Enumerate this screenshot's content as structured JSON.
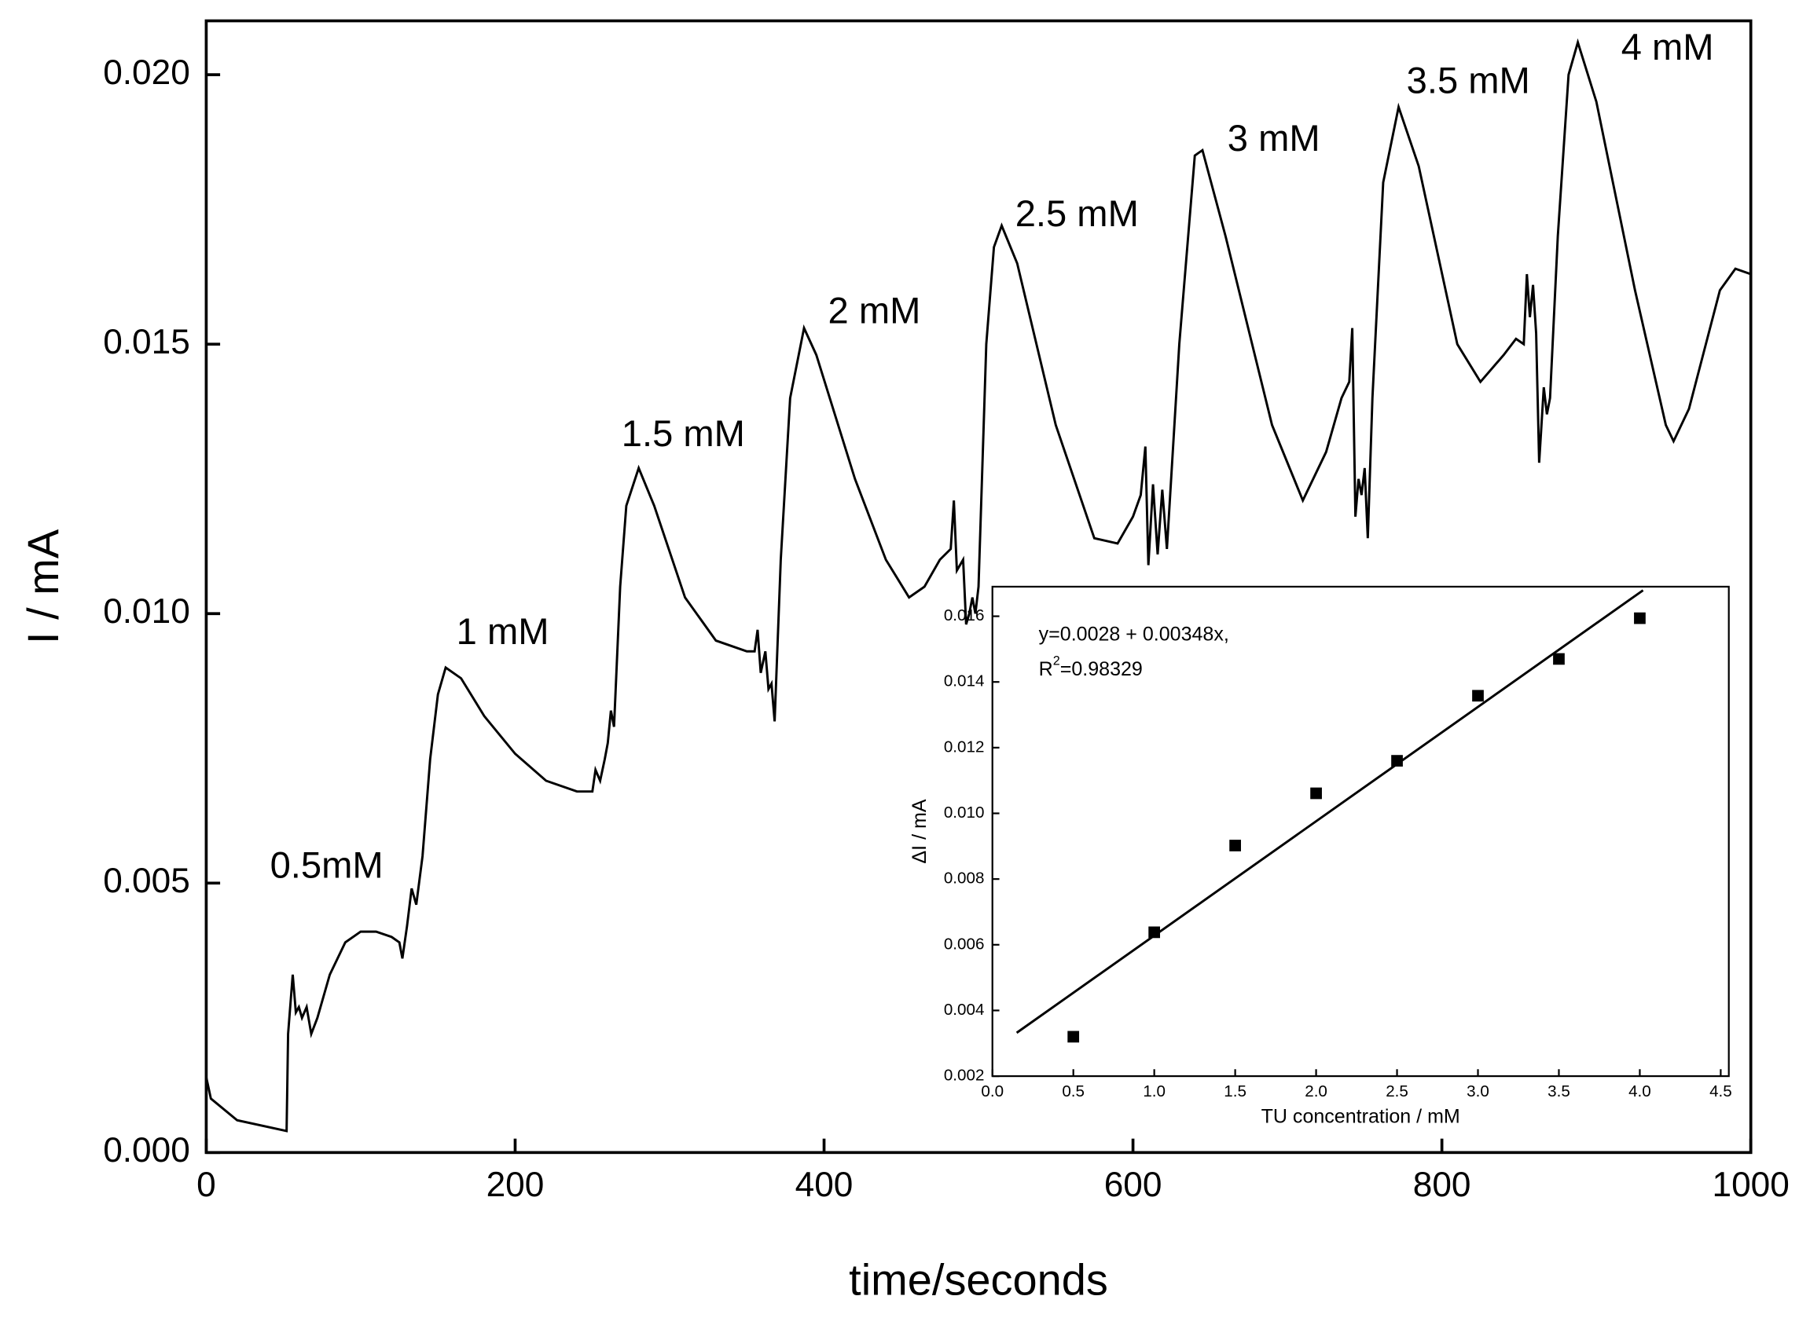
{
  "chart_data": [
    {
      "type": "line",
      "xlabel": "time/seconds",
      "ylabel": "I / mA",
      "annotations": [
        "0.5mM",
        "1 mM",
        "1.5 mM",
        "2 mM",
        "2.5 mM",
        "3 mM",
        "3.5 mM",
        "4 mM"
      ],
      "xlim": [
        0,
        1000
      ],
      "ylim": [
        0,
        0.021
      ],
      "xticks": [
        0,
        200,
        400,
        600,
        800,
        1000
      ],
      "yticks": [
        {
          "value": 0,
          "label": "0.000"
        },
        0.005,
        {
          "value": 0.01,
          "label": "0.010"
        },
        0.015,
        {
          "value": 0.02,
          "label": "0.020"
        }
      ],
      "color": "#000000",
      "x": [
        0,
        3,
        20,
        52,
        53,
        56,
        58,
        60,
        62,
        65,
        68,
        72,
        80,
        90,
        100,
        110,
        120,
        125,
        127,
        130,
        133,
        136,
        140,
        145,
        150,
        155,
        165,
        180,
        200,
        220,
        240,
        250,
        252,
        255,
        258,
        260,
        262,
        264,
        268,
        272,
        280,
        290,
        310,
        330,
        350,
        355,
        357,
        359,
        362,
        364,
        366,
        368,
        372,
        378,
        387,
        395,
        420,
        440,
        455,
        465,
        475,
        482,
        484,
        486,
        490,
        492,
        494,
        496,
        498,
        500,
        505,
        510,
        515,
        525,
        550,
        575,
        590,
        600,
        605,
        608,
        610,
        613,
        616,
        619,
        622,
        630,
        640,
        645,
        660,
        690,
        710,
        725,
        735,
        740,
        742,
        744,
        746,
        748,
        750,
        752,
        755,
        762,
        772,
        785,
        810,
        825,
        840,
        848,
        853,
        855,
        857,
        859,
        861,
        863,
        866,
        868,
        870,
        875,
        882,
        888,
        900,
        925,
        945,
        950,
        960,
        980,
        990,
        1000
      ],
      "values": [
        0.0014,
        0.001,
        0.0006,
        0.0004,
        0.0022,
        0.0033,
        0.0026,
        0.0027,
        0.0025,
        0.0027,
        0.0022,
        0.0025,
        0.0033,
        0.0039,
        0.0041,
        0.0041,
        0.004,
        0.0039,
        0.0036,
        0.0042,
        0.0049,
        0.0046,
        0.0055,
        0.0073,
        0.0085,
        0.009,
        0.0088,
        0.0081,
        0.0074,
        0.0069,
        0.0067,
        0.0067,
        0.0071,
        0.0069,
        0.0073,
        0.0076,
        0.0082,
        0.0079,
        0.0105,
        0.012,
        0.0127,
        0.012,
        0.0103,
        0.0095,
        0.0093,
        0.0093,
        0.0097,
        0.0089,
        0.0093,
        0.0086,
        0.0087,
        0.008,
        0.011,
        0.014,
        0.0153,
        0.0148,
        0.0125,
        0.011,
        0.0103,
        0.0105,
        0.011,
        0.0112,
        0.0121,
        0.0108,
        0.011,
        0.0098,
        0.01,
        0.0103,
        0.01,
        0.0105,
        0.015,
        0.0168,
        0.0172,
        0.0165,
        0.0135,
        0.0114,
        0.0113,
        0.0118,
        0.0122,
        0.0131,
        0.0109,
        0.0124,
        0.0111,
        0.0123,
        0.0112,
        0.015,
        0.0185,
        0.0186,
        0.017,
        0.0135,
        0.0121,
        0.013,
        0.014,
        0.0143,
        0.0153,
        0.0118,
        0.0125,
        0.0122,
        0.0127,
        0.0114,
        0.014,
        0.018,
        0.0194,
        0.0183,
        0.015,
        0.0143,
        0.0148,
        0.0151,
        0.015,
        0.0163,
        0.0155,
        0.0161,
        0.0152,
        0.0128,
        0.0142,
        0.0137,
        0.014,
        0.017,
        0.02,
        0.0206,
        0.0195,
        0.016,
        0.0135,
        0.0132,
        0.0138,
        0.016,
        0.0164,
        0.0163
      ]
    },
    {
      "type": "scatter",
      "xlabel": "TU concentration / mM",
      "ylabel": "ΔI / mA",
      "equation": "y=0.0028 + 0.00348x,",
      "r_squared": {
        "base": "R",
        "sup": "2",
        "text": "=0.98329"
      },
      "xlim": [
        0,
        4.55
      ],
      "ylim": [
        0.002,
        0.0169
      ],
      "xticks": [
        {
          "value": 0,
          "label": "0.0"
        },
        0.5,
        {
          "value": 1,
          "label": "1.0"
        },
        1.5,
        {
          "value": 2,
          "label": "2.0"
        },
        2.5,
        {
          "value": 3,
          "label": "3.0"
        },
        3.5,
        {
          "value": 4,
          "label": "4.0"
        },
        4.5
      ],
      "yticks": [
        0.002,
        0.004,
        0.006,
        0.008,
        {
          "value": 0.01,
          "label": "0.010"
        },
        0.012,
        0.014,
        0.016
      ],
      "color": "#000000",
      "x": [
        0.5,
        1.0,
        1.5,
        2.0,
        2.5,
        3.0,
        3.5,
        4.0
      ],
      "values": [
        0.0032,
        0.00638,
        0.00902,
        0.01061,
        0.0116,
        0.01358,
        0.0147,
        0.01594
      ],
      "fit": {
        "x": [
          0.15,
          4.02
        ],
        "values": [
          0.00332,
          0.01679
        ]
      }
    }
  ]
}
